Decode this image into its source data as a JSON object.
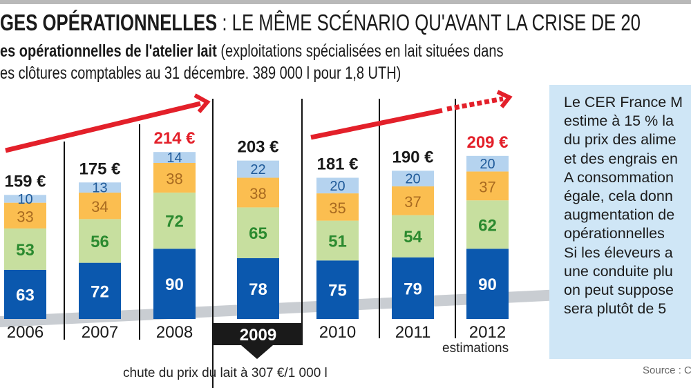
{
  "header": {
    "title_bold": "GES OPÉRATIONNELLES",
    "title_rest": " : LE MÊME SCÉNARIO QU'AVANT LA CRISE DE 20",
    "subtitle_bold": "es opérationnelles de l'atelier lait",
    "subtitle_rest": " (exploitations spécialisées en lait situées dans",
    "subtitle_line2": "es clôtures comptables au 31 décembre. 389 000 l pour 1,8 UTH)"
  },
  "chart_data": {
    "type": "bar",
    "stacked": true,
    "categories": [
      "2006",
      "2007",
      "2008",
      "2009",
      "2010",
      "2011",
      "2012"
    ],
    "series": [
      {
        "values": [
          63,
          72,
          90,
          78,
          75,
          79,
          90
        ],
        "color": "#0b58ae",
        "label_color": "#ffffff"
      },
      {
        "values": [
          53,
          56,
          72,
          65,
          51,
          54,
          62
        ],
        "color": "#c7df9f",
        "label_color": "#2b8a2f"
      },
      {
        "values": [
          33,
          34,
          38,
          38,
          35,
          37,
          37
        ],
        "color": "#fbbe50",
        "label_color": "#a86a20"
      },
      {
        "values": [
          10,
          13,
          14,
          22,
          20,
          20,
          20
        ],
        "color": "#b5d3ef",
        "label_color": "#1f5a99"
      }
    ],
    "totals": [
      "159 €",
      "175 €",
      "214 €",
      "203 €",
      "181 €",
      "190 €",
      "209 €"
    ],
    "total_colors": [
      "#1a1a1a",
      "#1a1a1a",
      "#e3202a",
      "#1a1a1a",
      "#1a1a1a",
      "#1a1a1a",
      "#e3202a"
    ],
    "highlighted_category": "2009",
    "annotation_2009": "chute du prix du lait à 307 €/1 000 l",
    "annotation_2012": "estimations",
    "trend_color": "#e3202a"
  },
  "callout": {
    "text": "Le CER France M\nestime à 15 % la\ndu prix des alime\net des engrais en\nA consommation\négale, cela donn\naugmentation de\nopérationnelles\nSi les éleveurs a\nune conduite plu\non peut suppose\nsera plutôt de 5"
  },
  "source": "Source : C"
}
